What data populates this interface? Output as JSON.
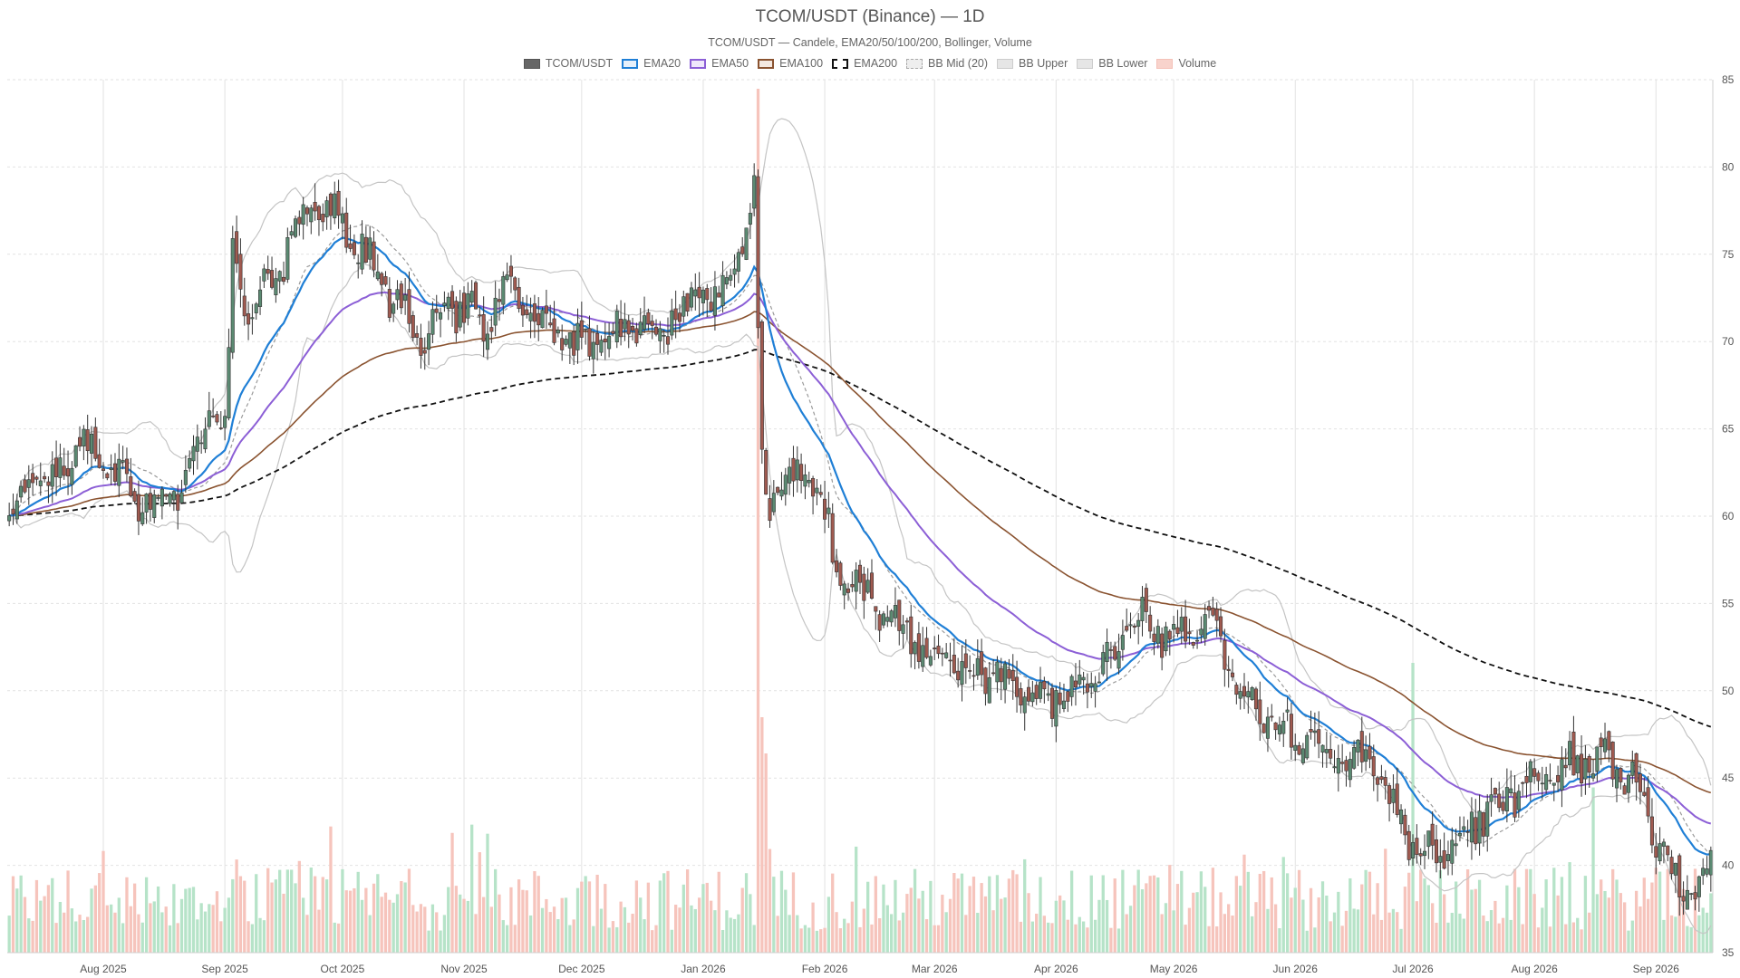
{
  "colors": {
    "up": "#5b8a72",
    "down": "#a05a50",
    "ema20": "#1f7fd6",
    "ema50": "#8c5fd6",
    "ema100": "#8a5330",
    "ema200": "#111111",
    "bb_band": "#c4c4c4",
    "bb_mid": "#9a9a9a",
    "vol_up": "#b6e3c8",
    "vol_down": "#f6c4bc",
    "grid": "#e2e2e2",
    "axis_text": "#555555"
  },
  "chart_data": {
    "type": "candlestick",
    "title": "TCOM/USDT (Binance) — 1D",
    "subtitle": "TCOM/USDT — Candele, EMA20/50/100/200, Bollinger, Volume",
    "legend": [
      {
        "label": "TCOM/USDT",
        "key": "price"
      },
      {
        "label": "EMA20",
        "key": "ema20"
      },
      {
        "label": "EMA50",
        "key": "ema50"
      },
      {
        "label": "EMA100",
        "key": "ema100"
      },
      {
        "label": "EMA200",
        "key": "ema200"
      },
      {
        "label": "BB Mid (20)",
        "key": "bb_mid"
      },
      {
        "label": "BB Upper",
        "key": "bb_upper"
      },
      {
        "label": "BB Lower",
        "key": "bb_lower"
      },
      {
        "label": "Volume",
        "key": "volume"
      }
    ],
    "legend_position": "top-center",
    "y_axis": {
      "side": "right",
      "min": 35,
      "max": 85,
      "ticks": [
        35,
        40,
        45,
        50,
        55,
        60,
        65,
        70,
        75,
        80,
        85
      ]
    },
    "x_axis": {
      "start": "2025-07-08",
      "end": "2026-09-15",
      "ticks": [
        {
          "label": "Aug 2025",
          "date": "2025-08-01"
        },
        {
          "label": "Sep 2025",
          "date": "2025-09-01"
        },
        {
          "label": "Oct 2025",
          "date": "2025-10-01"
        },
        {
          "label": "Nov 2025",
          "date": "2025-11-01"
        },
        {
          "label": "Dec 2025",
          "date": "2025-12-01"
        },
        {
          "label": "Jan 2026",
          "date": "2026-01-01"
        },
        {
          "label": "Feb 2026",
          "date": "2026-02-01"
        },
        {
          "label": "Mar 2026",
          "date": "2026-03-01"
        },
        {
          "label": "Apr 2026",
          "date": "2026-04-01"
        },
        {
          "label": "May 2026",
          "date": "2026-05-01"
        },
        {
          "label": "Jun 2026",
          "date": "2026-06-01"
        },
        {
          "label": "Jul 2026",
          "date": "2026-07-01"
        },
        {
          "label": "Aug 2026",
          "date": "2026-08-01"
        },
        {
          "label": "Sep 2026",
          "date": "2026-09-01"
        }
      ]
    },
    "grid": true,
    "close_keypoints": [
      [
        "2025-07-08",
        60.5
      ],
      [
        "2025-07-20",
        62.5
      ],
      [
        "2025-07-28",
        64.0
      ],
      [
        "2025-08-05",
        62.0
      ],
      [
        "2025-08-15",
        60.0
      ],
      [
        "2025-08-22",
        62.0
      ],
      [
        "2025-08-28",
        65.5
      ],
      [
        "2025-09-01",
        65.0
      ],
      [
        "2025-09-03",
        75.0
      ],
      [
        "2025-09-06",
        72.0
      ],
      [
        "2025-09-14",
        73.5
      ],
      [
        "2025-09-20",
        77.0
      ],
      [
        "2025-09-24",
        78.0
      ],
      [
        "2025-10-02",
        76.5
      ],
      [
        "2025-10-08",
        74.5
      ],
      [
        "2025-10-14",
        72.5
      ],
      [
        "2025-10-20",
        70.0
      ],
      [
        "2025-10-26",
        71.5
      ],
      [
        "2025-11-02",
        72.0
      ],
      [
        "2025-11-06",
        70.5
      ],
      [
        "2025-11-12",
        73.5
      ],
      [
        "2025-11-18",
        72.0
      ],
      [
        "2025-11-24",
        70.0
      ],
      [
        "2025-12-04",
        70.0
      ],
      [
        "2025-12-14",
        71.0
      ],
      [
        "2025-12-22",
        71.0
      ],
      [
        "2025-12-30",
        72.5
      ],
      [
        "2026-01-06",
        73.0
      ],
      [
        "2026-01-12",
        77.0
      ],
      [
        "2026-01-14",
        78.5
      ],
      [
        "2026-01-16",
        64.0
      ],
      [
        "2026-01-18",
        60.5
      ],
      [
        "2026-01-24",
        62.5
      ],
      [
        "2026-01-30",
        62.0
      ],
      [
        "2026-02-04",
        57.0
      ],
      [
        "2026-02-14",
        55.0
      ],
      [
        "2026-02-26",
        52.0
      ],
      [
        "2026-03-06",
        51.5
      ],
      [
        "2026-03-16",
        51.0
      ],
      [
        "2026-03-26",
        49.5
      ],
      [
        "2026-04-06",
        50.0
      ],
      [
        "2026-04-16",
        52.5
      ],
      [
        "2026-04-22",
        54.0
      ],
      [
        "2026-05-02",
        53.0
      ],
      [
        "2026-05-10",
        53.5
      ],
      [
        "2026-05-22",
        49.0
      ],
      [
        "2026-06-02",
        47.0
      ],
      [
        "2026-06-12",
        46.5
      ],
      [
        "2026-06-22",
        45.5
      ],
      [
        "2026-06-30",
        41.5
      ],
      [
        "2026-07-06",
        40.5
      ],
      [
        "2026-07-14",
        42.0
      ],
      [
        "2026-07-24",
        43.5
      ],
      [
        "2026-08-02",
        45.0
      ],
      [
        "2026-08-10",
        46.0
      ],
      [
        "2026-08-20",
        46.0
      ],
      [
        "2026-08-28",
        44.5
      ],
      [
        "2026-09-02",
        41.0
      ],
      [
        "2026-09-08",
        38.5
      ],
      [
        "2026-09-15",
        39.5
      ]
    ]
  }
}
